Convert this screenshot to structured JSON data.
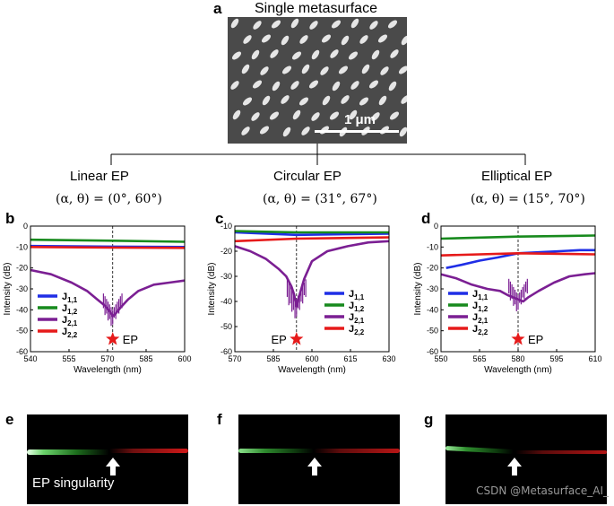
{
  "header": {
    "letter": "a",
    "title": "Single metasurface",
    "scale_bar_label": "1 μm"
  },
  "branches": [
    {
      "title": "Linear EP",
      "param": "(α, θ) = (0°, 60°)"
    },
    {
      "title": "Circular EP",
      "param": "(α, θ) = (31°, 67°)"
    },
    {
      "title": "Elliptical EP",
      "param": "(α, θ) = (15°, 70°)"
    }
  ],
  "legend": [
    {
      "key": "J",
      "sub": "1,1",
      "color": "#1f2ee6"
    },
    {
      "key": "J",
      "sub": "1,2",
      "color": "#178a1d"
    },
    {
      "key": "J",
      "sub": "2,1",
      "color": "#7b1f93"
    },
    {
      "key": "J",
      "sub": "2,2",
      "color": "#e61a1a"
    }
  ],
  "ep_label": "EP",
  "bottom_letters": [
    "e",
    "f",
    "g"
  ],
  "ep_singularity_label": "EP singularity",
  "watermark": "CSDN @Metasurface_AI_",
  "chart_data": [
    {
      "letter": "b",
      "type": "line",
      "xlabel": "Wavelength (nm)",
      "ylabel": "Intensity (dB)",
      "xlim": [
        540,
        600
      ],
      "ylim": [
        -60,
        0
      ],
      "xticks": [
        540,
        555,
        570,
        585,
        600
      ],
      "yticks": [
        0,
        -10,
        -20,
        -30,
        -40,
        -50,
        -60
      ],
      "ep_x": 572,
      "ep_y": -54,
      "ep_label_side": "right",
      "series": [
        {
          "name": "J1,1",
          "color": "#1f2ee6",
          "x": [
            540,
            572,
            600
          ],
          "y": [
            -9.5,
            -9.8,
            -10
          ]
        },
        {
          "name": "J1,2",
          "color": "#178a1d",
          "x": [
            540,
            572,
            600
          ],
          "y": [
            -6.5,
            -7,
            -7.5
          ]
        },
        {
          "name": "J2,1",
          "color": "#7b1f93",
          "x": [
            540,
            548,
            556,
            562,
            566,
            569,
            571,
            572,
            573,
            575,
            578,
            582,
            588,
            594,
            600
          ],
          "y": [
            -21,
            -23,
            -27,
            -31,
            -35,
            -38,
            -41,
            -43,
            -42,
            -39,
            -35,
            -31,
            -28,
            -27,
            -26
          ]
        },
        {
          "name": "J2,2",
          "color": "#e61a1a",
          "x": [
            540,
            572,
            600
          ],
          "y": [
            -10,
            -10.3,
            -10.4
          ]
        }
      ]
    },
    {
      "letter": "c",
      "type": "line",
      "xlabel": "Wavelength (nm)",
      "ylabel": "Intensity (dB)",
      "xlim": [
        570,
        630
      ],
      "ylim": [
        -60,
        -10
      ],
      "xticks": [
        570,
        585,
        600,
        615,
        630
      ],
      "yticks": [
        -10,
        -20,
        -30,
        -40,
        -50,
        -60
      ],
      "ep_x": 594,
      "ep_y": -55,
      "ep_label_side": "left",
      "series": [
        {
          "name": "J1,1",
          "color": "#1f2ee6",
          "x": [
            570,
            594,
            630
          ],
          "y": [
            -12.5,
            -13.5,
            -13
          ]
        },
        {
          "name": "J1,2",
          "color": "#178a1d",
          "x": [
            570,
            594,
            630
          ],
          "y": [
            -12,
            -12.5,
            -12.5
          ]
        },
        {
          "name": "J2,1",
          "color": "#7b1f93",
          "x": [
            570,
            576,
            582,
            587,
            590,
            592,
            593,
            594,
            595,
            597,
            600,
            606,
            614,
            622,
            630
          ],
          "y": [
            -18,
            -20,
            -23,
            -27,
            -30,
            -34,
            -37,
            -42,
            -38,
            -31,
            -24,
            -20,
            -18,
            -16.5,
            -16
          ]
        },
        {
          "name": "J2,2",
          "color": "#e61a1a",
          "x": [
            570,
            594,
            630
          ],
          "y": [
            -16,
            -15,
            -14.5
          ]
        }
      ]
    },
    {
      "letter": "d",
      "type": "line",
      "xlabel": "Wavelength (nm)",
      "ylabel": "Intensity (dB)",
      "xlim": [
        550,
        610
      ],
      "ylim": [
        -60,
        0
      ],
      "xticks": [
        550,
        565,
        580,
        595,
        610
      ],
      "yticks": [
        0,
        -10,
        -20,
        -30,
        -40,
        -50,
        -60
      ],
      "ep_x": 580,
      "ep_y": -54,
      "ep_label_side": "right",
      "series": [
        {
          "name": "J1,1",
          "color": "#1f2ee6",
          "x": [
            552,
            558,
            565,
            572,
            580,
            588,
            596,
            604,
            610
          ],
          "y": [
            -20,
            -18.5,
            -16.5,
            -15,
            -13,
            -12.5,
            -12,
            -11.5,
            -11.5
          ]
        },
        {
          "name": "J1,2",
          "color": "#178a1d",
          "x": [
            550,
            580,
            610
          ],
          "y": [
            -6,
            -5,
            -4.5
          ]
        },
        {
          "name": "J2,1",
          "color": "#7b1f93",
          "x": [
            550,
            556,
            562,
            568,
            573,
            576,
            578,
            580,
            582,
            584,
            588,
            594,
            600,
            606,
            610
          ],
          "y": [
            -23,
            -25,
            -28,
            -30,
            -31,
            -33,
            -34,
            -35,
            -36,
            -34,
            -31,
            -27,
            -24,
            -23,
            -22.5
          ]
        },
        {
          "name": "J2,2",
          "color": "#e61a1a",
          "x": [
            550,
            580,
            610
          ],
          "y": [
            -14,
            -13,
            -13.5
          ]
        }
      ]
    }
  ]
}
